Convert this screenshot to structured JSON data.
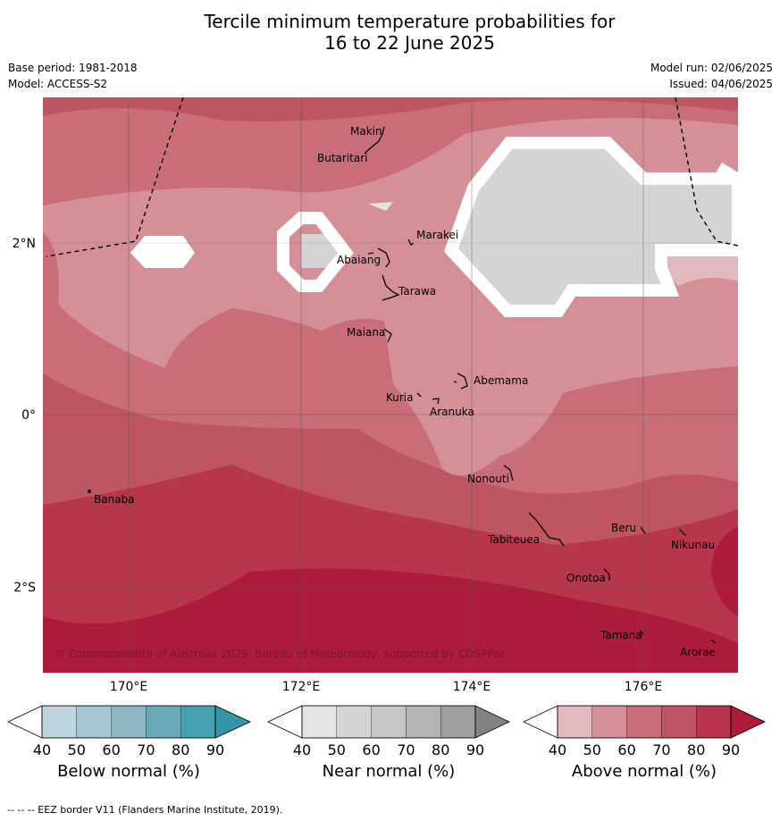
{
  "title_line1": "Tercile minimum temperature probabilities for",
  "title_line2": "16 to 22 June 2025",
  "base_period": "Base period: 1981-2018",
  "model": "Model: ACCESS-S2",
  "model_run": "Model run: 02/06/2025",
  "issued": "Issued: 04/06/2025",
  "copyright": "© Commonwealth of Australia 2025, Bureau of Meteorology, supported by COSPPac",
  "footnote": "-- -- -- EEZ border V11 (Flanders Marine Institute, 2019).",
  "map": {
    "lat_labels": [
      "2°N",
      "0°",
      "2°S"
    ],
    "lon_labels": [
      "170°E",
      "172°E",
      "174°E",
      "176°E"
    ],
    "places": [
      "Makin",
      "Butaritari",
      "Marakei",
      "Abaiang",
      "Tarawa",
      "Maiana",
      "Abemama",
      "Kuria",
      "Aranuka",
      "Nonouti",
      "Banaba",
      "Beru",
      "Nikunau",
      "Tabiteuea",
      "Onotoa",
      "Tamana",
      "Arorae"
    ]
  },
  "colorbars": [
    {
      "label": "Below normal (%)",
      "ticks": [
        "40",
        "50",
        "60",
        "70",
        "80",
        "90"
      ],
      "colors": [
        "#ffffff",
        "#bdd4dc",
        "#a5c6cf",
        "#8cb7c3",
        "#6aaab8",
        "#47a1b2",
        "#3594a8"
      ]
    },
    {
      "label": "Near normal (%)",
      "ticks": [
        "40",
        "50",
        "60",
        "70",
        "80",
        "90"
      ],
      "colors": [
        "#ffffff",
        "#e3e3e3",
        "#d4d4d4",
        "#c6c6c6",
        "#b3b3b3",
        "#9f9f9f",
        "#828282"
      ]
    },
    {
      "label": "Above normal (%)",
      "ticks": [
        "40",
        "50",
        "60",
        "70",
        "80",
        "90"
      ],
      "colors": [
        "#ffffff",
        "#e0b8bd",
        "#d48f97",
        "#c96d78",
        "#bf5563",
        "#b7364b",
        "#ad1c3a"
      ]
    }
  ]
}
